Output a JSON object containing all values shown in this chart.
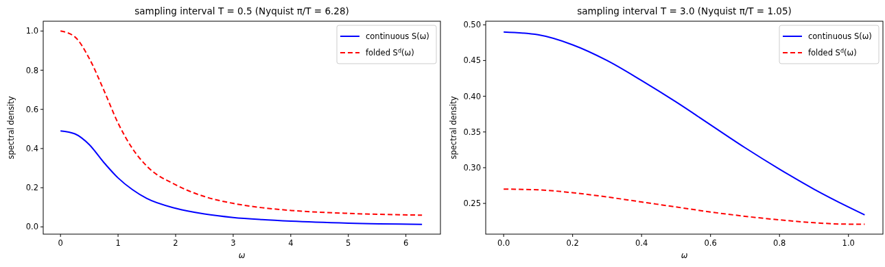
{
  "chart_data": [
    {
      "type": "line",
      "title": "sampling interval T = 0.5  (Nyquist π/T = 6.28)",
      "xlabel": "ω",
      "ylabel": "spectral density",
      "xlim": [
        -0.3,
        6.6
      ],
      "ylim": [
        -0.037,
        1.05
      ],
      "xticks": [
        0,
        1,
        2,
        3,
        4,
        5,
        6
      ],
      "yticks": [
        {
          "value": 0,
          "label": "0.0"
        },
        0.2,
        0.4,
        0.6,
        0.8,
        {
          "value": 1,
          "label": "1.0"
        }
      ],
      "legend": "top right",
      "grid": false,
      "series": [
        {
          "name": "continuous S(ω)",
          "color": "#0000ff",
          "line_style": "solid",
          "x": [
            0,
            0.25,
            0.5,
            0.75,
            1,
            1.25,
            1.5,
            2,
            2.5,
            3,
            3.5,
            4,
            5,
            6.28
          ],
          "values": [
            0.49,
            0.475,
            0.42,
            0.33,
            0.25,
            0.19,
            0.145,
            0.095,
            0.066,
            0.048,
            0.037,
            0.029,
            0.019,
            0.013
          ]
        },
        {
          "name": "folded S$^{d}$(ω)",
          "color": "#ff0000",
          "line_style": "dashed",
          "x": [
            0,
            0.25,
            0.5,
            0.75,
            1,
            1.25,
            1.5,
            2,
            2.5,
            3,
            3.5,
            4,
            5,
            6.28
          ],
          "values": [
            1.0,
            0.97,
            0.86,
            0.7,
            0.53,
            0.4,
            0.31,
            0.215,
            0.155,
            0.12,
            0.098,
            0.084,
            0.069,
            0.06
          ]
        }
      ]
    },
    {
      "type": "line",
      "title": "sampling interval T = 3.0  (Nyquist π/T = 1.05)",
      "xlabel": "ω",
      "ylabel": "spectral density",
      "xlim": [
        -0.052,
        1.1
      ],
      "ylim": [
        0.207,
        0.505
      ],
      "xticks": [
        {
          "value": 0,
          "label": "0.0"
        },
        0.2,
        0.4,
        0.6,
        0.8,
        {
          "value": 1,
          "label": "1.0"
        }
      ],
      "yticks": [
        0.25,
        {
          "value": 0.3,
          "label": "0.30"
        },
        0.35,
        {
          "value": 0.4,
          "label": "0.40"
        },
        0.45,
        {
          "value": 0.5,
          "label": "0.50"
        }
      ],
      "legend": "top right",
      "grid": false,
      "series": [
        {
          "name": "continuous S(ω)",
          "color": "#0000ff",
          "line_style": "solid",
          "x": [
            0,
            0.1,
            0.2,
            0.3,
            0.4,
            0.5,
            0.6,
            0.7,
            0.8,
            0.9,
            1,
            1.047
          ],
          "values": [
            0.49,
            0.486,
            0.472,
            0.45,
            0.422,
            0.392,
            0.36,
            0.328,
            0.298,
            0.27,
            0.245,
            0.234
          ]
        },
        {
          "name": "folded S$^{d}$(ω)",
          "color": "#ff0000",
          "line_style": "dashed",
          "x": [
            0,
            0.1,
            0.2,
            0.3,
            0.4,
            0.5,
            0.6,
            0.7,
            0.8,
            0.9,
            1,
            1.047
          ],
          "values": [
            0.27,
            0.269,
            0.265,
            0.259,
            0.252,
            0.245,
            0.238,
            0.232,
            0.227,
            0.223,
            0.221,
            0.221
          ]
        }
      ]
    }
  ]
}
